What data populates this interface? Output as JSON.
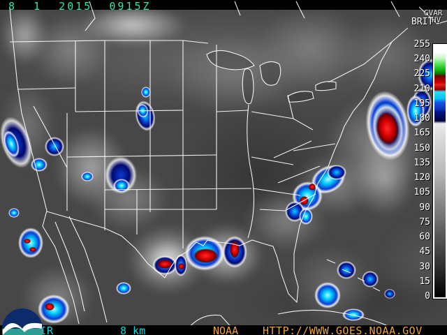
{
  "title_bar": {
    "datetime": "8  1  2015  0915Z"
  },
  "colorbar": {
    "title": "BRIT",
    "corner_text": "GVAR",
    "corner_text2": "HV",
    "ticks": [
      "255",
      "240",
      "225",
      "210",
      "195",
      "180",
      "165",
      "150",
      "135",
      "120",
      "105",
      "90",
      "75",
      "60",
      "45",
      "30",
      "15",
      "0"
    ]
  },
  "footer": {
    "product": "IR",
    "resolution": "8 km",
    "agency": "NOAA",
    "url": "HTTP://WWW.GOES.NOAA.GOV"
  },
  "icons": {
    "logo": "noaa-logo"
  },
  "colors": {
    "datetime_text": "#2ce8a8",
    "footer_cyan": "#00dcdc",
    "footer_orange": "#efa52f",
    "scale_text": "#ffffff",
    "storm_red": "#d40000",
    "storm_cyan": "#00d2ff",
    "storm_blue": "#0a3cd2",
    "storm_navy": "#02096e",
    "map_line": "#ffffff"
  }
}
